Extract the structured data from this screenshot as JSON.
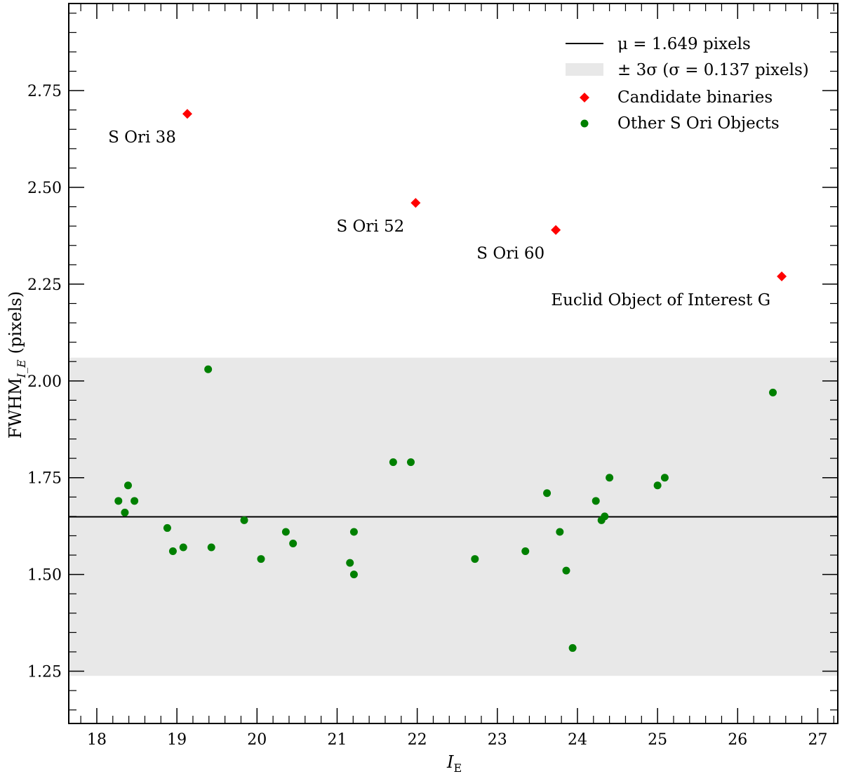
{
  "chart_data": {
    "type": "scatter",
    "xlabel": "I",
    "xlabel_sub": "E",
    "ylabel": "FWHM",
    "ylabel_sub": "I_E",
    "ylabel_suffix": "(pixels)",
    "xlim": [
      17.65,
      27.25
    ],
    "ylim": [
      1.115,
      2.975
    ],
    "x_ticks": [
      18,
      19,
      20,
      21,
      22,
      23,
      24,
      25,
      26,
      27
    ],
    "x_tick_labels": [
      "18",
      "19",
      "20",
      "21",
      "22",
      "23",
      "24",
      "25",
      "26",
      "27"
    ],
    "y_ticks": [
      1.25,
      1.5,
      1.75,
      2.0,
      2.25,
      2.5,
      2.75
    ],
    "y_tick_labels": [
      "1.25",
      "1.50",
      "1.75",
      "2.00",
      "2.25",
      "2.50",
      "2.75"
    ],
    "grid": false,
    "legend_position": "top-right",
    "mean_line": {
      "value": 1.649,
      "label": "μ = 1.649 pixels",
      "color": "#000000"
    },
    "band": {
      "center": 1.649,
      "sigma": 0.137,
      "n_sigma": 3,
      "label": "± 3σ (σ = 0.137 pixels)",
      "color": "#e8e8e8"
    },
    "series": [
      {
        "name": "Candidate binaries",
        "marker": "diamond",
        "color": "#ff0000",
        "points": [
          {
            "x": 19.13,
            "y": 2.69,
            "label": "S Ori 38"
          },
          {
            "x": 21.98,
            "y": 2.46,
            "label": "S Ori 52"
          },
          {
            "x": 23.73,
            "y": 2.39,
            "label": "S Ori 60"
          },
          {
            "x": 26.55,
            "y": 2.27,
            "label": "Euclid Object of Interest G"
          }
        ]
      },
      {
        "name": "Other S Ori Objects",
        "marker": "circle",
        "color": "#008000",
        "points": [
          {
            "x": 18.27,
            "y": 1.69
          },
          {
            "x": 18.35,
            "y": 1.66
          },
          {
            "x": 18.39,
            "y": 1.73
          },
          {
            "x": 18.47,
            "y": 1.69
          },
          {
            "x": 18.88,
            "y": 1.62
          },
          {
            "x": 18.95,
            "y": 1.56
          },
          {
            "x": 19.08,
            "y": 1.57
          },
          {
            "x": 19.39,
            "y": 2.03
          },
          {
            "x": 19.43,
            "y": 1.57
          },
          {
            "x": 19.84,
            "y": 1.64
          },
          {
            "x": 20.05,
            "y": 1.54
          },
          {
            "x": 20.36,
            "y": 1.61
          },
          {
            "x": 20.45,
            "y": 1.58
          },
          {
            "x": 21.16,
            "y": 1.53
          },
          {
            "x": 21.21,
            "y": 1.61
          },
          {
            "x": 21.21,
            "y": 1.5
          },
          {
            "x": 21.7,
            "y": 1.79
          },
          {
            "x": 21.92,
            "y": 1.79
          },
          {
            "x": 22.72,
            "y": 1.54
          },
          {
            "x": 23.35,
            "y": 1.56
          },
          {
            "x": 23.62,
            "y": 1.71
          },
          {
            "x": 23.78,
            "y": 1.61
          },
          {
            "x": 23.86,
            "y": 1.51
          },
          {
            "x": 23.94,
            "y": 1.31
          },
          {
            "x": 24.23,
            "y": 1.69
          },
          {
            "x": 24.3,
            "y": 1.64
          },
          {
            "x": 24.34,
            "y": 1.65
          },
          {
            "x": 24.4,
            "y": 1.75
          },
          {
            "x": 25.0,
            "y": 1.73
          },
          {
            "x": 25.09,
            "y": 1.75
          },
          {
            "x": 26.44,
            "y": 1.97
          }
        ]
      }
    ]
  }
}
